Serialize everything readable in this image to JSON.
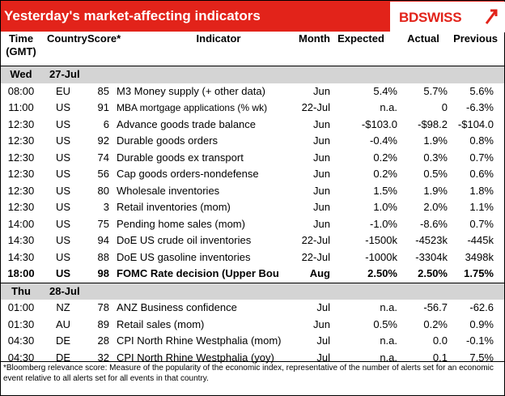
{
  "title": "Yesterday's market-affecting indicators",
  "brand": {
    "name": "BDSWISS",
    "color": "#e2231a"
  },
  "columns": {
    "time": "Time (GMT)",
    "country": "Country",
    "score": "Score*",
    "indicator": "Indicator",
    "month": "Month",
    "expected": "Expected",
    "actual": "Actual",
    "previous": "Previous"
  },
  "days": [
    {
      "day": "Wed",
      "date": "27-Jul",
      "rows": [
        {
          "time": "08:00",
          "country": "EU",
          "score": "85",
          "indicator": "M3 Money supply (+ other data)",
          "month": "Jun",
          "expected": "5.4%",
          "actual": "5.7%",
          "previous": "5.6%",
          "bold": false,
          "small": false
        },
        {
          "time": "11:00",
          "country": "US",
          "score": "91",
          "indicator": "MBA mortgage applications (% wk)",
          "month": "22-Jul",
          "expected": "n.a.",
          "actual": "0",
          "previous": "-6.3%",
          "bold": false,
          "small": true
        },
        {
          "time": "12:30",
          "country": "US",
          "score": "6",
          "indicator": "Advance goods trade balance",
          "month": "Jun",
          "expected": "-$103.0",
          "actual": "-$98.2",
          "previous": "-$104.0",
          "bold": false,
          "small": false
        },
        {
          "time": "12:30",
          "country": "US",
          "score": "92",
          "indicator": "Durable goods orders",
          "month": "Jun",
          "expected": "-0.4%",
          "actual": "1.9%",
          "previous": "0.8%",
          "bold": false,
          "small": false
        },
        {
          "time": "12:30",
          "country": "US",
          "score": "74",
          "indicator": "Durable goods ex transport",
          "month": "Jun",
          "expected": "0.2%",
          "actual": "0.3%",
          "previous": "0.7%",
          "bold": false,
          "small": false
        },
        {
          "time": "12:30",
          "country": "US",
          "score": "56",
          "indicator": "Cap goods orders-nondefense",
          "month": "Jun",
          "expected": "0.2%",
          "actual": "0.5%",
          "previous": "0.6%",
          "bold": false,
          "small": false
        },
        {
          "time": "12:30",
          "country": "US",
          "score": "80",
          "indicator": "Wholesale inventories",
          "month": "Jun",
          "expected": "1.5%",
          "actual": "1.9%",
          "previous": "1.8%",
          "bold": false,
          "small": false
        },
        {
          "time": "12:30",
          "country": "US",
          "score": "3",
          "indicator": "Retail inventories (mom)",
          "month": "Jun",
          "expected": "1.0%",
          "actual": "2.0%",
          "previous": "1.1%",
          "bold": false,
          "small": false
        },
        {
          "time": "14:00",
          "country": "US",
          "score": "75",
          "indicator": "Pending home sales (mom)",
          "month": "Jun",
          "expected": "-1.0%",
          "actual": "-8.6%",
          "previous": "0.7%",
          "bold": false,
          "small": false
        },
        {
          "time": "14:30",
          "country": "US",
          "score": "94",
          "indicator": "DoE US crude oil inventories",
          "month": "22-Jul",
          "expected": "-1500k",
          "actual": "-4523k",
          "previous": "-445k",
          "bold": false,
          "small": false
        },
        {
          "time": "14:30",
          "country": "US",
          "score": "88",
          "indicator": "DoE US gasoline inventories",
          "month": "22-Jul",
          "expected": "-1000k",
          "actual": "-3304k",
          "previous": "3498k",
          "bold": false,
          "small": false
        },
        {
          "time": "18:00",
          "country": "US",
          "score": "98",
          "indicator": "FOMC Rate decision (Upper Bou",
          "month": "Aug",
          "expected": "2.50%",
          "actual": "2.50%",
          "previous": "1.75%",
          "bold": true,
          "small": false
        }
      ]
    },
    {
      "day": "Thu",
      "date": "28-Jul",
      "rows": [
        {
          "time": "01:00",
          "country": "NZ",
          "score": "78",
          "indicator": "ANZ Business confidence",
          "month": "Jul",
          "expected": "n.a.",
          "actual": "-56.7",
          "previous": "-62.6",
          "bold": false,
          "small": false
        },
        {
          "time": "01:30",
          "country": "AU",
          "score": "89",
          "indicator": "Retail sales (mom)",
          "month": "Jun",
          "expected": "0.5%",
          "actual": "0.2%",
          "previous": "0.9%",
          "bold": false,
          "small": false
        },
        {
          "time": "04:30",
          "country": "DE",
          "score": "28",
          "indicator": "CPI North Rhine Westphalia (mom)",
          "month": "Jul",
          "expected": "n.a.",
          "actual": "0.0",
          "previous": "-0.1%",
          "bold": false,
          "small": false
        },
        {
          "time": "04:30",
          "country": "DE",
          "score": "32",
          "indicator": "CPI North Rhine Westphalia (yoy)",
          "month": "Jul",
          "expected": "n.a.",
          "actual": "0.1",
          "previous": "7.5%",
          "bold": false,
          "small": false
        }
      ]
    }
  ],
  "footnote": "*Bloomberg relevance score:  Measure of the popularity of the economic index, representative of the number of alerts set for an economic event relative to all alerts set for all events in that country."
}
